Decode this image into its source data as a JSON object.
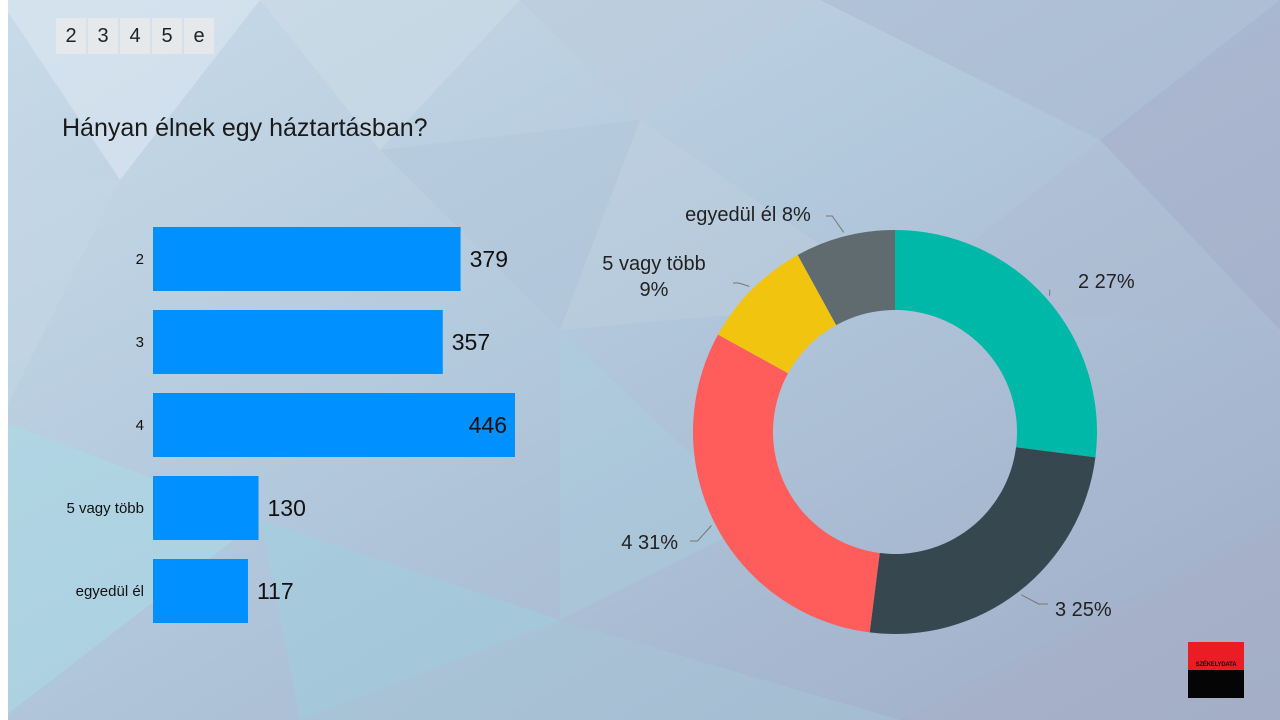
{
  "tabs": [
    "2",
    "3",
    "4",
    "5",
    "e"
  ],
  "title": "Hányan élnek egy háztartásban?",
  "logo_text": "SZÉKELYDATA",
  "colors": {
    "bar": "#0090ff",
    "slices": [
      "#00b8a8",
      "#37474f",
      "#ff5c5c",
      "#f1c40f",
      "#5f6b6e"
    ]
  },
  "chart_data": [
    {
      "type": "bar",
      "orientation": "horizontal",
      "categories": [
        "2",
        "3",
        "4",
        "5 vagy több",
        "egyedül él"
      ],
      "values": [
        379,
        357,
        446,
        130,
        117
      ],
      "xlim": [
        0,
        446
      ]
    },
    {
      "type": "pie",
      "style": "donut",
      "categories": [
        "2",
        "3",
        "4",
        "5 vagy több",
        "egyedül él"
      ],
      "values": [
        27,
        25,
        31,
        9,
        8
      ],
      "labels": [
        "2 27%",
        "3 25%",
        "4 31%",
        "5 vagy több 9%",
        "egyedül él 8%"
      ]
    }
  ]
}
